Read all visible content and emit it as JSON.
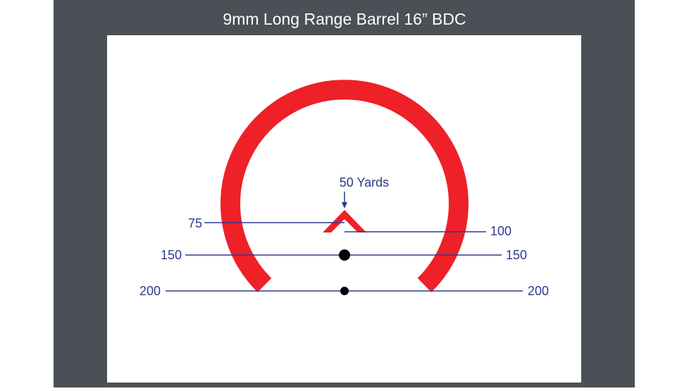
{
  "header": {
    "title": "9mm Long Range Barrel 16” BDC"
  },
  "reticle": {
    "aim_label": "50 Yards",
    "left_labels": [
      "75",
      "150",
      "200"
    ],
    "right_labels": [
      "100",
      "150",
      "200"
    ]
  }
}
